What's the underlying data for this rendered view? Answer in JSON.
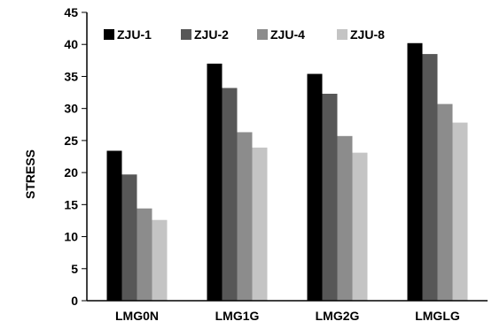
{
  "chart_data": {
    "type": "bar",
    "ylabel": "STRESS",
    "xlabel": "",
    "ylim": [
      0,
      45
    ],
    "ytick_step": 5,
    "yticks": [
      "0",
      "5",
      "10",
      "15",
      "20",
      "25",
      "30",
      "35",
      "40",
      "45"
    ],
    "categories": [
      "LMG0N",
      "LMG1G",
      "LMG2G",
      "LMGLG"
    ],
    "legend_position": "top-left",
    "grid": false,
    "series": [
      {
        "name": "ZJU-1",
        "color": "#000000",
        "values": [
          23.4,
          37.0,
          35.4,
          40.2
        ]
      },
      {
        "name": "ZJU-2",
        "color": "#575757",
        "values": [
          19.7,
          33.2,
          32.3,
          38.5
        ]
      },
      {
        "name": "ZJU-4",
        "color": "#8c8c8c",
        "values": [
          14.4,
          26.3,
          25.7,
          30.7
        ]
      },
      {
        "name": "ZJU-8",
        "color": "#c4c4c4",
        "values": [
          12.6,
          23.9,
          23.1,
          27.8
        ]
      }
    ]
  }
}
